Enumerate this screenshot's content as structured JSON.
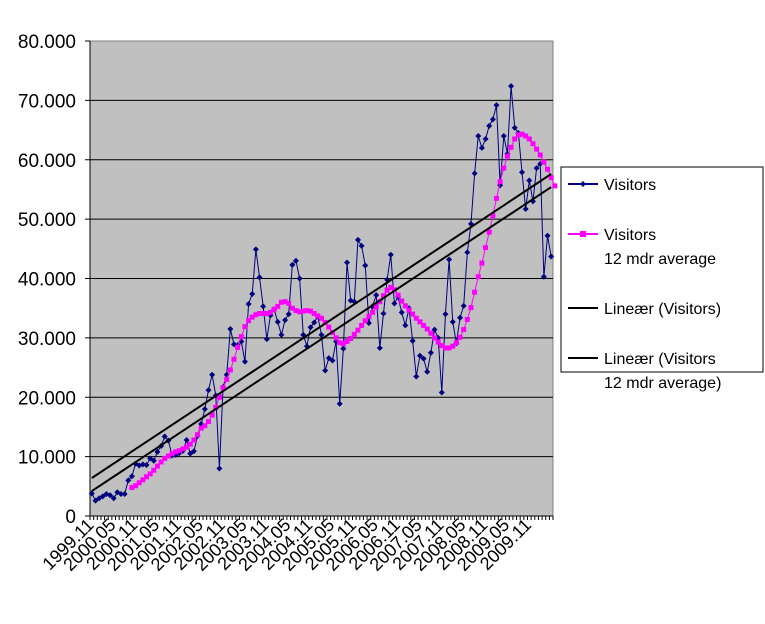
{
  "chart_data": {
    "type": "line",
    "ylim": [
      0,
      80000
    ],
    "y_ticks": [
      0,
      10000,
      20000,
      30000,
      40000,
      50000,
      60000,
      70000,
      80000
    ],
    "y_tick_labels": [
      "0",
      "10.000",
      "20.000",
      "30.000",
      "40.000",
      "50.000",
      "60.000",
      "70.000",
      "80.000"
    ],
    "x_tick_labels": [
      "1999.11",
      "2000.05",
      "2000.11",
      "2001.05",
      "2001.11",
      "2002.05",
      "2002.11",
      "2003.05",
      "2003.11",
      "2004.05",
      "2004.11",
      "2005.05",
      "2005.11",
      "2006.05",
      "2006.11",
      "2007.05",
      "2007.11",
      "2008.05",
      "2008.11",
      "2009.05",
      "2009.11"
    ],
    "x_tick_every_months": 6,
    "x_start": "1999.11",
    "grid": true,
    "plot_background": "#c0c0c0",
    "legend_position": "right",
    "series": [
      {
        "name": "Visitors",
        "color": "#000080",
        "marker": "diamond",
        "values": [
          3800,
          2600,
          3000,
          3300,
          3700,
          3500,
          3000,
          4000,
          3700,
          3700,
          6000,
          6700,
          8800,
          8500,
          8700,
          8600,
          9700,
          9300,
          10800,
          11800,
          13400,
          12700,
          10200,
          10300,
          10600,
          11000,
          12800,
          10500,
          10900,
          13500,
          15500,
          18000,
          21200,
          23800,
          20300,
          8000,
          21700,
          23800,
          31500,
          28900,
          28800,
          29400,
          26000,
          35700,
          37400,
          44900,
          40200,
          35300,
          29800,
          33800,
          34800,
          32700,
          30500,
          33000,
          34000,
          42300,
          43000,
          40000,
          30500,
          28600,
          31800,
          32600,
          33600,
          30500,
          24500,
          26600,
          26200,
          29400,
          18900,
          28200,
          42700,
          36300,
          36100,
          46500,
          45500,
          42200,
          32500,
          35300,
          37200,
          28300,
          34100,
          39800,
          44000,
          35800,
          36900,
          34300,
          32100,
          35000,
          29500,
          23500,
          27000,
          26500,
          24300,
          27500,
          31400,
          30000,
          20800,
          34000,
          43200,
          32700,
          29100,
          33400,
          35400,
          44400,
          49200,
          57700,
          64000,
          62000,
          63500,
          65700,
          66800,
          69200,
          55700,
          64000,
          61000,
          72400,
          65400,
          64500,
          57900,
          51700,
          56500,
          53000,
          58600,
          59300,
          40300,
          47200,
          43700
        ],
        "label_lines": [
          "Visitors"
        ]
      },
      {
        "name": "Visitors 12 mdr average",
        "color": "#ff00ff",
        "marker": "square",
        "start_index": 11,
        "values": [
          4800,
          5100,
          5600,
          6100,
          6600,
          7100,
          7700,
          8400,
          9100,
          9700,
          10100,
          10500,
          10800,
          11000,
          11300,
          11600,
          12100,
          12800,
          13700,
          14800,
          15200,
          15900,
          17000,
          18300,
          20000,
          21600,
          23000,
          24600,
          26400,
          28400,
          30200,
          31900,
          32900,
          33500,
          33900,
          34100,
          34100,
          34100,
          34300,
          34800,
          35300,
          36000,
          36100,
          35800,
          35000,
          34600,
          34400,
          34500,
          34600,
          34500,
          34100,
          33700,
          33300,
          32600,
          31800,
          30900,
          30000,
          29200,
          29000,
          29400,
          29900,
          30600,
          31300,
          32100,
          32900,
          33600,
          34300,
          35200,
          36100,
          37100,
          38000,
          38500,
          38100,
          37200,
          36200,
          35400,
          34700,
          34000,
          33300,
          32700,
          32100,
          31500,
          30800,
          30000,
          29300,
          28700,
          28300,
          28300,
          28600,
          29200,
          30100,
          31400,
          33100,
          35100,
          37700,
          40300,
          42600,
          45200,
          47800,
          50600,
          53500,
          56300,
          58600,
          60600,
          62100,
          63500,
          64200,
          64300,
          64000,
          63500,
          62700,
          61800,
          60800,
          59600,
          58400,
          57000,
          55600
        ]
      },
      {
        "name": "Lineær (Visitors)",
        "color": "#000000",
        "marker": "none",
        "trend": [
          4200,
          55400
        ]
      },
      {
        "name": "Lineær (Visitors 12 mdr average)",
        "color": "#000000",
        "marker": "none",
        "trend": [
          6400,
          57600
        ]
      }
    ],
    "legend": [
      {
        "lines": [
          "Visitors"
        ],
        "color": "#000080",
        "marker": "diamond"
      },
      {
        "lines": [
          "Visitors",
          "12 mdr average"
        ],
        "color": "#ff00ff",
        "marker": "square"
      },
      {
        "lines": [
          "Lineær (Visitors)"
        ],
        "color": "#000000",
        "marker": "none"
      },
      {
        "lines": [
          "Lineær (Visitors",
          "12 mdr average)"
        ],
        "color": "#000000",
        "marker": "none"
      }
    ]
  }
}
